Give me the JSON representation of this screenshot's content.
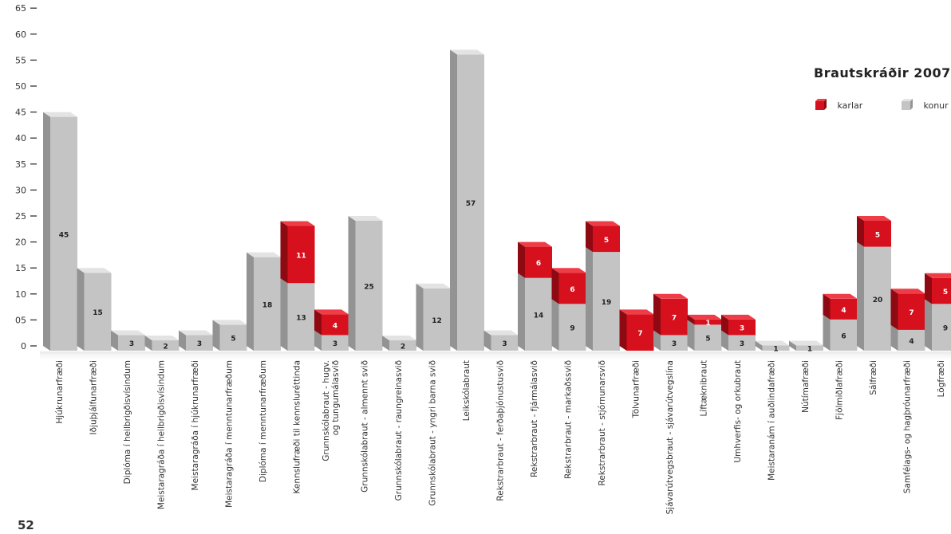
{
  "page_number": "52",
  "legend": {
    "title": "Brautskráðir 2007",
    "items": [
      {
        "label": "karlar",
        "color": "#d7101d"
      },
      {
        "label": "konur",
        "color": "#c4c4c4"
      }
    ]
  },
  "chart_data": {
    "type": "bar",
    "stacked": true,
    "title": "Brautskráðir 2007",
    "ylim": [
      0,
      65
    ],
    "yticks": [
      "0",
      "05",
      "10",
      "15",
      "20",
      "25",
      "30",
      "35",
      "40",
      "45",
      "50",
      "55",
      "60",
      "65"
    ],
    "categories": [
      "Hjúkrunarfræði",
      "Iðjuþjálfunarfræði",
      "Diplóma í heilbrigðisvísindum",
      "Meistaragráða í heilbrigðisvísindum",
      "Meistaragráða í hjúkrunarfræði",
      "Meistaragráða í menntunarfræðum",
      "Diplóma í menntunarfræðum",
      "Kennslufræði til kennsluréttinda",
      "Grunnskólabraut - hugv. og tungumálasvið",
      "Grunnskólabraut - almennt svið",
      "Grunnskólabraut - raungreinasvið",
      "Grunnskólabraut - yngri barna svið",
      "Leikskólabraut",
      "Rekstrarbraut - ferðaþjónustusvið",
      "Rekstrarbraut - fjármálasvið",
      "Rekstrarbraut - markaðssvið",
      "Rekstrarbraut - stjórnunarsvið",
      "Tölvunarfræði",
      "Sjávarútvegsbraut - sjávarútvegslína",
      "Líftæknibraut",
      "Umhverfis- og orkubraut",
      "Meistaranám í auðlindafræði",
      "Nútímafræði",
      "Fjölmiðlafræði",
      "Sálfræði",
      "Samfélags- og hagþróunarfræði",
      "Lögfræði"
    ],
    "series": [
      {
        "name": "konur",
        "color": "#c4c4c4",
        "values": [
          45,
          15,
          3,
          2,
          3,
          5,
          18,
          13,
          3,
          25,
          2,
          12,
          57,
          3,
          14,
          9,
          19,
          0,
          3,
          5,
          3,
          1,
          1,
          6,
          20,
          4,
          9
        ]
      },
      {
        "name": "karlar",
        "color": "#d7101d",
        "values": [
          0,
          0,
          0,
          0,
          0,
          0,
          0,
          11,
          4,
          0,
          0,
          0,
          0,
          0,
          6,
          6,
          5,
          7,
          7,
          1,
          3,
          0,
          0,
          4,
          5,
          7,
          5
        ]
      }
    ]
  }
}
